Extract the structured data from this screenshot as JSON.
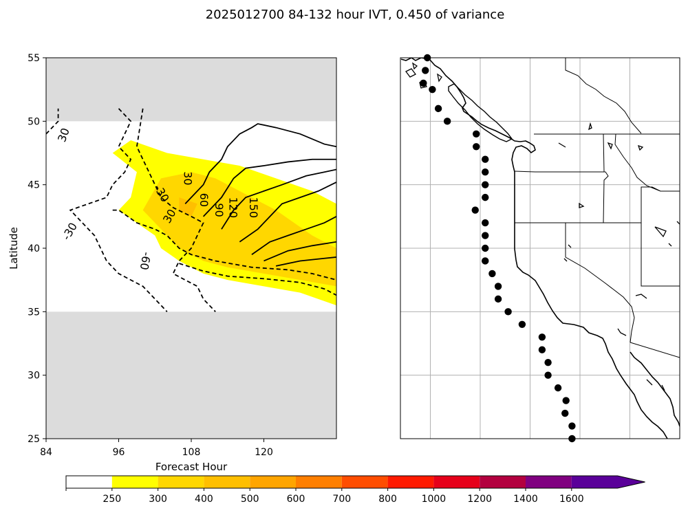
{
  "title": "2025012700 84-132 hour IVT, 0.450 of variance",
  "chart_data": [
    {
      "type": "heatmap",
      "panel": "hovmoller",
      "xlabel": "Forecast Hour",
      "ylabel": "Latitude",
      "xlim": [
        84,
        132
      ],
      "ylim": [
        25,
        55
      ],
      "x_ticks": [
        84,
        96,
        108,
        120
      ],
      "y_ticks": [
        25,
        30,
        35,
        40,
        45,
        50,
        55
      ],
      "masked_lat_ranges": [
        [
          25,
          35
        ],
        [
          50,
          55
        ]
      ],
      "filled_regions": [
        {
          "level": "250-300",
          "color": "#ffff00",
          "polygon": [
            [
              95,
              47.5
            ],
            [
              98,
              48.5
            ],
            [
              104,
              47.5
            ],
            [
              110,
              47
            ],
            [
              116,
              46.5
            ],
            [
              122,
              45.5
            ],
            [
              128,
              44.5
            ],
            [
              132,
              43.5
            ],
            [
              132,
              35.5
            ],
            [
              126,
              36.5
            ],
            [
              120,
              37
            ],
            [
              114,
              37.5
            ],
            [
              110,
              38
            ],
            [
              106,
              39
            ],
            [
              103,
              40
            ],
            [
              102,
              41
            ],
            [
              99,
              42
            ],
            [
              96,
              43
            ],
            [
              98,
              44
            ],
            [
              99,
              46
            ]
          ]
        },
        {
          "level": "300-400",
          "color": "#ffd700",
          "polygon": [
            [
              103,
              45.5
            ],
            [
              108,
              46
            ],
            [
              112,
              45.5
            ],
            [
              116,
              44.5
            ],
            [
              122,
              43
            ],
            [
              128,
              41
            ],
            [
              132,
              40
            ],
            [
              132,
              37
            ],
            [
              126,
              37.5
            ],
            [
              120,
              38
            ],
            [
              114,
              38.5
            ],
            [
              110,
              39
            ],
            [
              106,
              40
            ],
            [
              103,
              41.5
            ],
            [
              100,
              43
            ]
          ]
        },
        {
          "level": "400-500",
          "color": "#ffbf00",
          "polygon": [
            [
              106,
              44
            ],
            [
              109,
              43.5
            ],
            [
              108,
              42.5
            ],
            [
              106,
              43
            ]
          ]
        }
      ],
      "contour_series": [
        {
          "name": "-30",
          "style": "dashed",
          "label": "-30",
          "points": [
            [
              84,
              49
            ],
            [
              86,
              50
            ],
            [
              86,
              51
            ]
          ]
        },
        {
          "name": "-30",
          "style": "dashed",
          "label": "-30",
          "points": [
            [
              96,
              51
            ],
            [
              98,
              50
            ],
            [
              97,
              49
            ],
            [
              96,
              48
            ],
            [
              98,
              47
            ],
            [
              97,
              46
            ],
            [
              95,
              45
            ],
            [
              94,
              44
            ],
            [
              88,
              43
            ],
            [
              90,
              42
            ],
            [
              92,
              41
            ],
            [
              93,
              40
            ],
            [
              94,
              39
            ],
            [
              96,
              38
            ],
            [
              100,
              37
            ],
            [
              102,
              36
            ],
            [
              104,
              35
            ]
          ]
        },
        {
          "name": "-60",
          "style": "dashed",
          "label": "-60",
          "points": [
            [
              100,
              51
            ],
            [
              99,
              48
            ],
            [
              101,
              46
            ],
            [
              102,
              45
            ],
            [
              103,
              44
            ],
            [
              105,
              43.2
            ],
            [
              108,
              42.5
            ],
            [
              110,
              42
            ],
            [
              109,
              41
            ],
            [
              108,
              40
            ],
            [
              106,
              39
            ],
            [
              105,
              38
            ],
            [
              107,
              37.5
            ],
            [
              109,
              37
            ],
            [
              110,
              36
            ],
            [
              112,
              35
            ]
          ]
        },
        {
          "name": "-30 upper",
          "style": "dashed",
          "label": "",
          "points": [
            [
              95,
              43
            ],
            [
              96,
              43
            ],
            [
              99,
              42
            ],
            [
              102,
              41.5
            ],
            [
              104,
              41
            ],
            [
              106,
              40
            ],
            [
              108,
              39.5
            ],
            [
              112,
              39
            ],
            [
              118,
              38.5
            ],
            [
              124,
              38.3
            ],
            [
              128,
              38
            ],
            [
              132,
              37.5
            ]
          ]
        },
        {
          "name": "-60 lower",
          "style": "dashed",
          "label": "",
          "points": [
            [
              106,
              38.8
            ],
            [
              110,
              38.2
            ],
            [
              114,
              37.8
            ],
            [
              120,
              37.6
            ],
            [
              126,
              37.3
            ],
            [
              130,
              36.8
            ],
            [
              132,
              36.3
            ]
          ]
        },
        {
          "name": "30",
          "style": "solid",
          "label": "30",
          "points": [
            [
              107,
              43.5
            ],
            [
              110,
              45
            ],
            [
              111,
              46
            ],
            [
              113,
              47
            ],
            [
              114,
              48
            ],
            [
              116,
              49
            ],
            [
              118,
              49.5
            ],
            [
              119,
              49.8
            ],
            [
              122,
              49.5
            ],
            [
              126,
              49
            ],
            [
              130,
              48.2
            ],
            [
              132,
              48
            ]
          ]
        },
        {
          "name": "60",
          "style": "solid",
          "label": "60",
          "points": [
            [
              110,
              42.5
            ],
            [
              113,
              44
            ],
            [
              115,
              45.5
            ],
            [
              117,
              46.3
            ],
            [
              120,
              46.5
            ],
            [
              124,
              46.8
            ],
            [
              128,
              47
            ],
            [
              132,
              47
            ]
          ]
        },
        {
          "name": "90",
          "style": "solid",
          "label": "90",
          "points": [
            [
              113,
              41.5
            ],
            [
              115,
              43
            ],
            [
              117,
              44
            ],
            [
              120,
              44.5
            ],
            [
              123,
              45
            ],
            [
              127,
              45.7
            ],
            [
              130,
              46
            ],
            [
              132,
              46.2
            ]
          ]
        },
        {
          "name": "120",
          "style": "solid",
          "label": "120",
          "points": [
            [
              116,
              40.5
            ],
            [
              119,
              41.5
            ],
            [
              121,
              42.5
            ],
            [
              123,
              43.5
            ],
            [
              126,
              44
            ],
            [
              129,
              44.5
            ],
            [
              132,
              45.2
            ]
          ]
        },
        {
          "name": "150",
          "style": "solid",
          "label": "150",
          "points": [
            [
              118,
              39.5
            ],
            [
              121,
              40.5
            ],
            [
              124,
              41
            ],
            [
              127,
              41.5
            ],
            [
              130,
              42
            ],
            [
              132,
              42.5
            ]
          ]
        },
        {
          "name": "180",
          "style": "solid",
          "label": "",
          "points": [
            [
              120,
              39
            ],
            [
              124,
              39.8
            ],
            [
              128,
              40.2
            ],
            [
              132,
              40.5
            ]
          ]
        },
        {
          "name": "210",
          "style": "solid",
          "label": "",
          "points": [
            [
              122,
              38.6
            ],
            [
              126,
              39
            ],
            [
              130,
              39.2
            ],
            [
              132,
              39.3
            ]
          ]
        }
      ],
      "contour_label_text": [
        "30",
        "-30",
        "30",
        "-30",
        "-60",
        "30",
        "60",
        "90",
        "120",
        "150"
      ]
    },
    {
      "type": "map",
      "panel": "station-map",
      "lon_range": [
        -133,
        -105
      ],
      "lat_range": [
        25,
        55
      ],
      "grid": true,
      "station_latitudes": [
        55,
        54,
        53,
        52,
        51,
        50,
        49,
        48,
        47,
        46,
        45,
        44,
        43,
        42,
        41,
        40,
        39,
        38,
        37,
        36,
        35,
        34,
        33,
        32,
        31,
        30,
        29,
        28,
        27,
        26,
        25
      ],
      "station_points": [
        [
          -130.3,
          55
        ],
        [
          -130.5,
          54
        ],
        [
          -130.7,
          53
        ],
        [
          -129.8,
          52.5
        ],
        [
          -129.2,
          51
        ],
        [
          -128.3,
          50
        ],
        [
          -125.4,
          49
        ],
        [
          -125.4,
          48
        ],
        [
          -124.5,
          47
        ],
        [
          -124.5,
          46
        ],
        [
          -124.5,
          45
        ],
        [
          -124.5,
          44
        ],
        [
          -125.5,
          43
        ],
        [
          -124.5,
          42
        ],
        [
          -124.5,
          41
        ],
        [
          -124.5,
          40
        ],
        [
          -124.5,
          39
        ],
        [
          -123.8,
          38
        ],
        [
          -123.2,
          37
        ],
        [
          -123.2,
          36
        ],
        [
          -122.2,
          35
        ],
        [
          -120.8,
          34
        ],
        [
          -118.8,
          33
        ],
        [
          -118.8,
          32
        ],
        [
          -118.2,
          31
        ],
        [
          -118.2,
          30
        ],
        [
          -117.2,
          29
        ],
        [
          -116.4,
          28
        ],
        [
          -116.5,
          27
        ],
        [
          -115.8,
          26
        ],
        [
          -115.8,
          25
        ]
      ]
    }
  ],
  "colorbar": {
    "levels": [
      "250",
      "300",
      "400",
      "500",
      "600",
      "700",
      "800",
      "1000",
      "1200",
      "1400",
      "1600"
    ],
    "colors": [
      "#ffffff",
      "#ffff00",
      "#ffd700",
      "#ffbf00",
      "#ffa500",
      "#ff7f00",
      "#ff4d00",
      "#ff1a00",
      "#e6001a",
      "#b3003f",
      "#800080",
      "#5a0099"
    ]
  }
}
